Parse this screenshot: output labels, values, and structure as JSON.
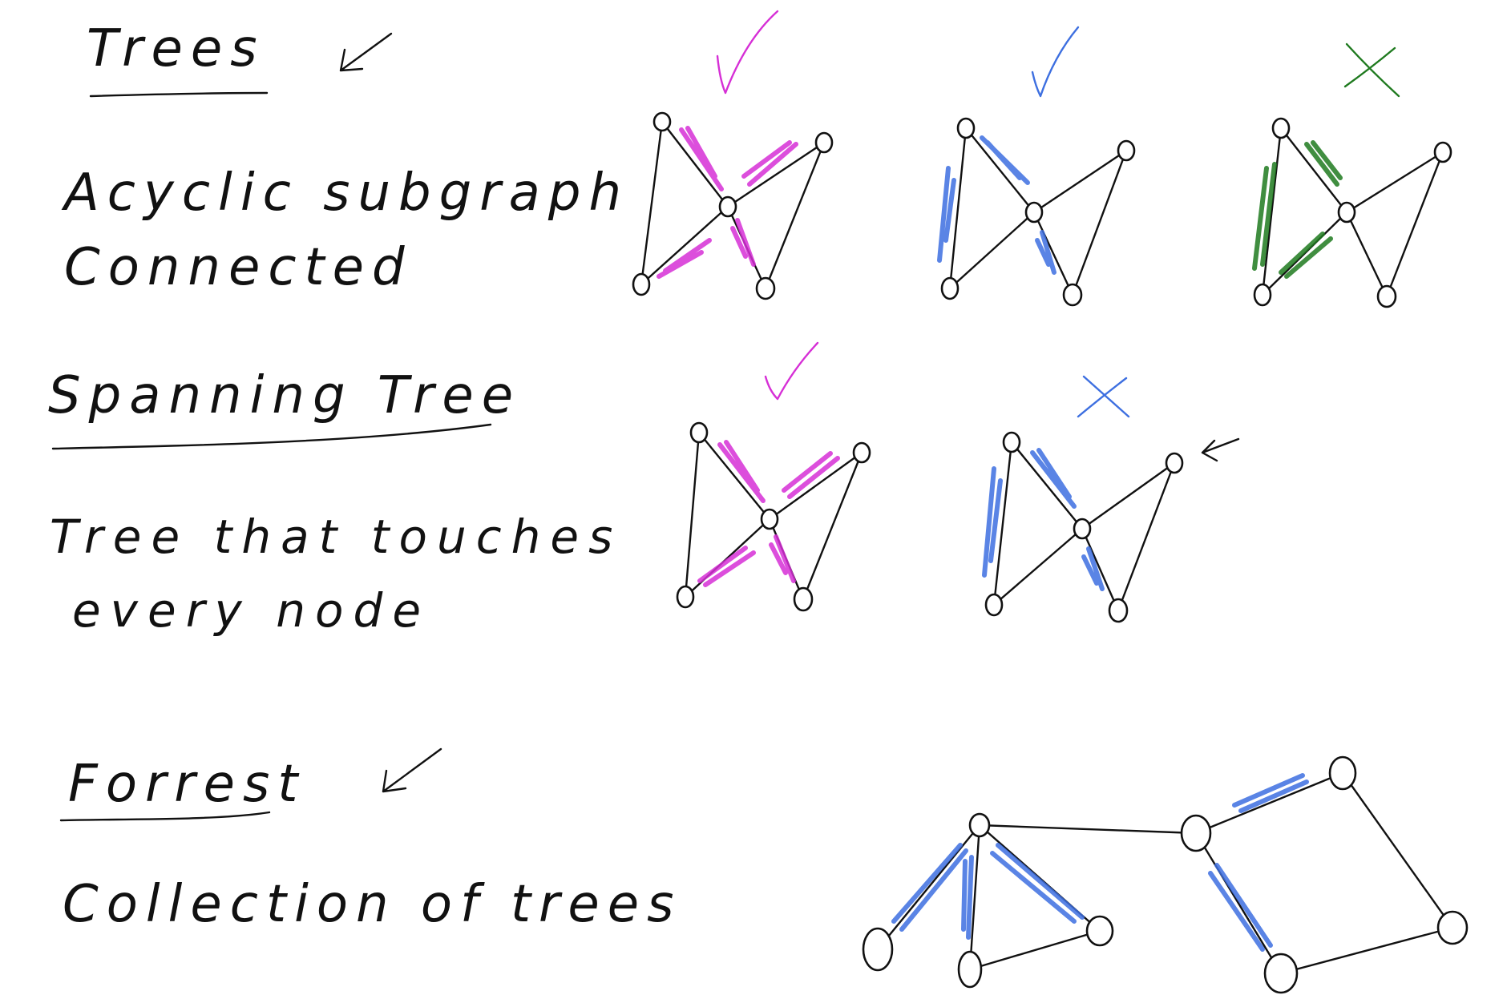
{
  "colors": {
    "ink": "#111111",
    "magenta": "#d62fd6",
    "blue": "#3d6fe0",
    "green": "#1f7a1f"
  },
  "notes": {
    "trees_heading": "Trees",
    "trees_line1": "Acyclic subgraph",
    "trees_line2": "Connected",
    "spanning_heading": "Spanning Tree",
    "spanning_line1": "Tree that touches",
    "spanning_line2": "every node",
    "forest_heading": "Forrest",
    "forest_line1": "Collection of trees"
  },
  "icons": [
    "check-mark-icon",
    "cross-mark-icon",
    "arrow-icon"
  ]
}
